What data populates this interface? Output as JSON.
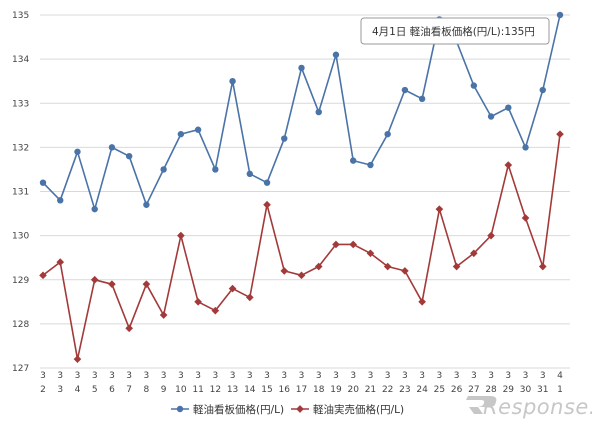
{
  "chart_data": {
    "type": "line",
    "x": [
      {
        "month": "3",
        "day": "2"
      },
      {
        "month": "3",
        "day": "3"
      },
      {
        "month": "3",
        "day": "4"
      },
      {
        "month": "3",
        "day": "5"
      },
      {
        "month": "3",
        "day": "6"
      },
      {
        "month": "3",
        "day": "7"
      },
      {
        "month": "3",
        "day": "8"
      },
      {
        "month": "3",
        "day": "9"
      },
      {
        "month": "3",
        "day": "10"
      },
      {
        "month": "3",
        "day": "11"
      },
      {
        "month": "3",
        "day": "12"
      },
      {
        "month": "3",
        "day": "13"
      },
      {
        "month": "3",
        "day": "14"
      },
      {
        "month": "3",
        "day": "15"
      },
      {
        "month": "3",
        "day": "16"
      },
      {
        "month": "3",
        "day": "17"
      },
      {
        "month": "3",
        "day": "18"
      },
      {
        "month": "3",
        "day": "19"
      },
      {
        "month": "3",
        "day": "20"
      },
      {
        "month": "3",
        "day": "21"
      },
      {
        "month": "3",
        "day": "22"
      },
      {
        "month": "3",
        "day": "23"
      },
      {
        "month": "3",
        "day": "24"
      },
      {
        "month": "3",
        "day": "25"
      },
      {
        "month": "3",
        "day": "26"
      },
      {
        "month": "3",
        "day": "27"
      },
      {
        "month": "3",
        "day": "28"
      },
      {
        "month": "3",
        "day": "29"
      },
      {
        "month": "3",
        "day": "30"
      },
      {
        "month": "3",
        "day": "31"
      },
      {
        "month": "4",
        "day": "1"
      }
    ],
    "series": [
      {
        "name": "軽油看板価格(円/L)",
        "color": "#4a73a8",
        "marker": "circle",
        "values": [
          131.2,
          130.8,
          131.9,
          130.6,
          132.0,
          131.8,
          130.7,
          131.5,
          132.3,
          132.4,
          131.5,
          133.5,
          131.4,
          131.2,
          132.2,
          133.8,
          132.8,
          134.1,
          131.7,
          131.6,
          132.3,
          133.3,
          133.1,
          134.9,
          134.4,
          133.4,
          132.7,
          132.9,
          132.0,
          133.3,
          135.0
        ]
      },
      {
        "name": "軽油実売価格(円/L)",
        "color": "#a33a3a",
        "marker": "diamond",
        "values": [
          129.1,
          129.4,
          127.2,
          129.0,
          128.9,
          127.9,
          128.9,
          128.2,
          130.0,
          128.5,
          128.3,
          128.8,
          128.6,
          130.7,
          129.2,
          129.1,
          129.3,
          129.8,
          129.8,
          129.6,
          129.3,
          129.2,
          128.5,
          130.6,
          129.3,
          129.6,
          130.0,
          131.6,
          130.4,
          129.3,
          132.3
        ]
      }
    ],
    "ylim": [
      127,
      135
    ],
    "yticks": [
      "127",
      "128",
      "129",
      "130",
      "131",
      "132",
      "133",
      "134",
      "135"
    ],
    "grid": true,
    "legend_position": "bottom",
    "tooltip": "4月1日  軽油看板価格(円/L):135円",
    "watermark": "Response."
  }
}
